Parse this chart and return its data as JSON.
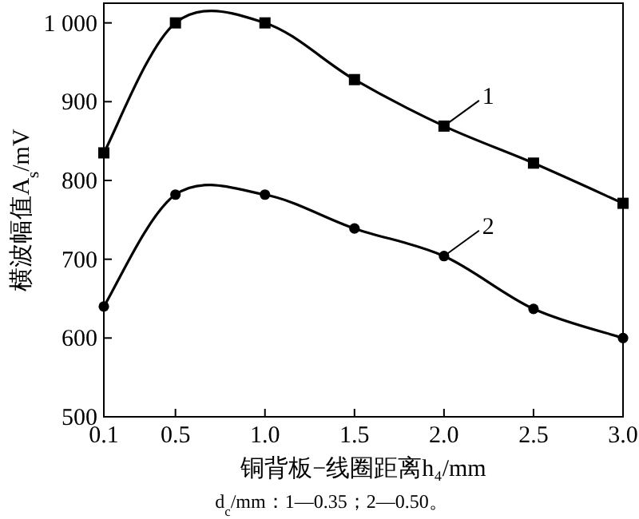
{
  "chart_data": {
    "type": "line",
    "xlabel": "铜背板−线圈距离h₄/mm",
    "ylabel": "横波幅值A$_{s}$/mV",
    "annotations": [
      "d$_{c}$/mm：1—0.35；2—0.50。"
    ],
    "x": [
      0.1,
      0.5,
      1.0,
      1.5,
      2.0,
      2.5,
      3.0
    ],
    "series": [
      {
        "name": "1",
        "color": "#000000",
        "marker": "square",
        "values": [
          835,
          1000,
          1000,
          928,
          869,
          822,
          771
        ]
      },
      {
        "name": "2",
        "color": "#000000",
        "marker": "circle",
        "values": [
          640,
          782,
          782,
          739,
          704,
          637,
          600
        ]
      }
    ],
    "xlim": [
      0.1,
      3.0
    ],
    "xticks": [
      0.1,
      0.5,
      {
        "value": 1,
        "label": "1.0"
      },
      1.5,
      {
        "value": 2,
        "label": "2.0"
      },
      2.5,
      {
        "value": 3,
        "label": "3.0"
      }
    ],
    "ylim": [
      500,
      1025
    ],
    "yticks": [
      500,
      600,
      700,
      800,
      900,
      {
        "value": 1000,
        "label": "1 000"
      }
    ],
    "grid": false,
    "legend": "center right",
    "line_style": "solid"
  }
}
